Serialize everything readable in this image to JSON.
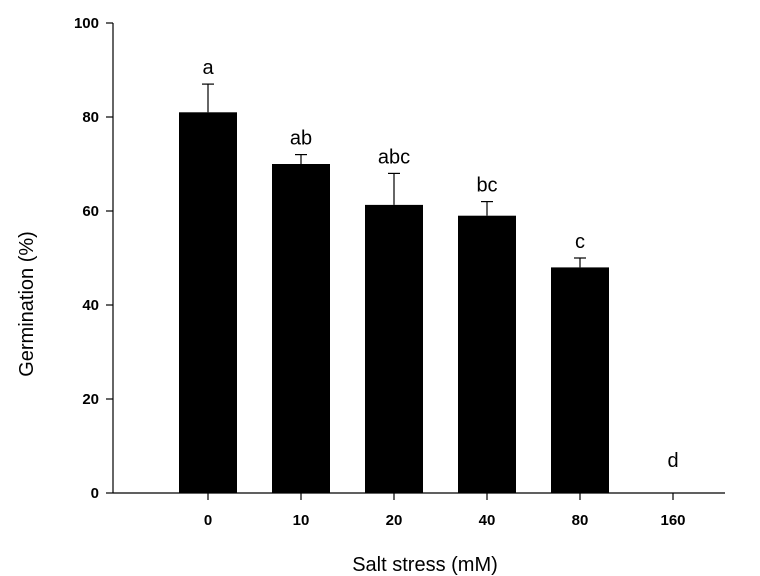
{
  "chart_data": {
    "type": "bar",
    "categories": [
      "0",
      "10",
      "20",
      "40",
      "80",
      "160"
    ],
    "values": [
      81,
      70,
      61.3,
      59,
      48,
      0
    ],
    "error_plus": [
      6,
      2,
      6.7,
      3,
      2,
      0
    ],
    "significance_letters": [
      "a",
      "ab",
      "abc",
      "bc",
      "c",
      "d"
    ],
    "xlabel": "Salt stress (mM)",
    "ylabel": "Germination (%)",
    "ylim": [
      0,
      100
    ],
    "yticks": [
      "0",
      "20",
      "40",
      "60",
      "80",
      "100"
    ],
    "grid": false,
    "legend": "none",
    "bar_color": "#000000"
  }
}
